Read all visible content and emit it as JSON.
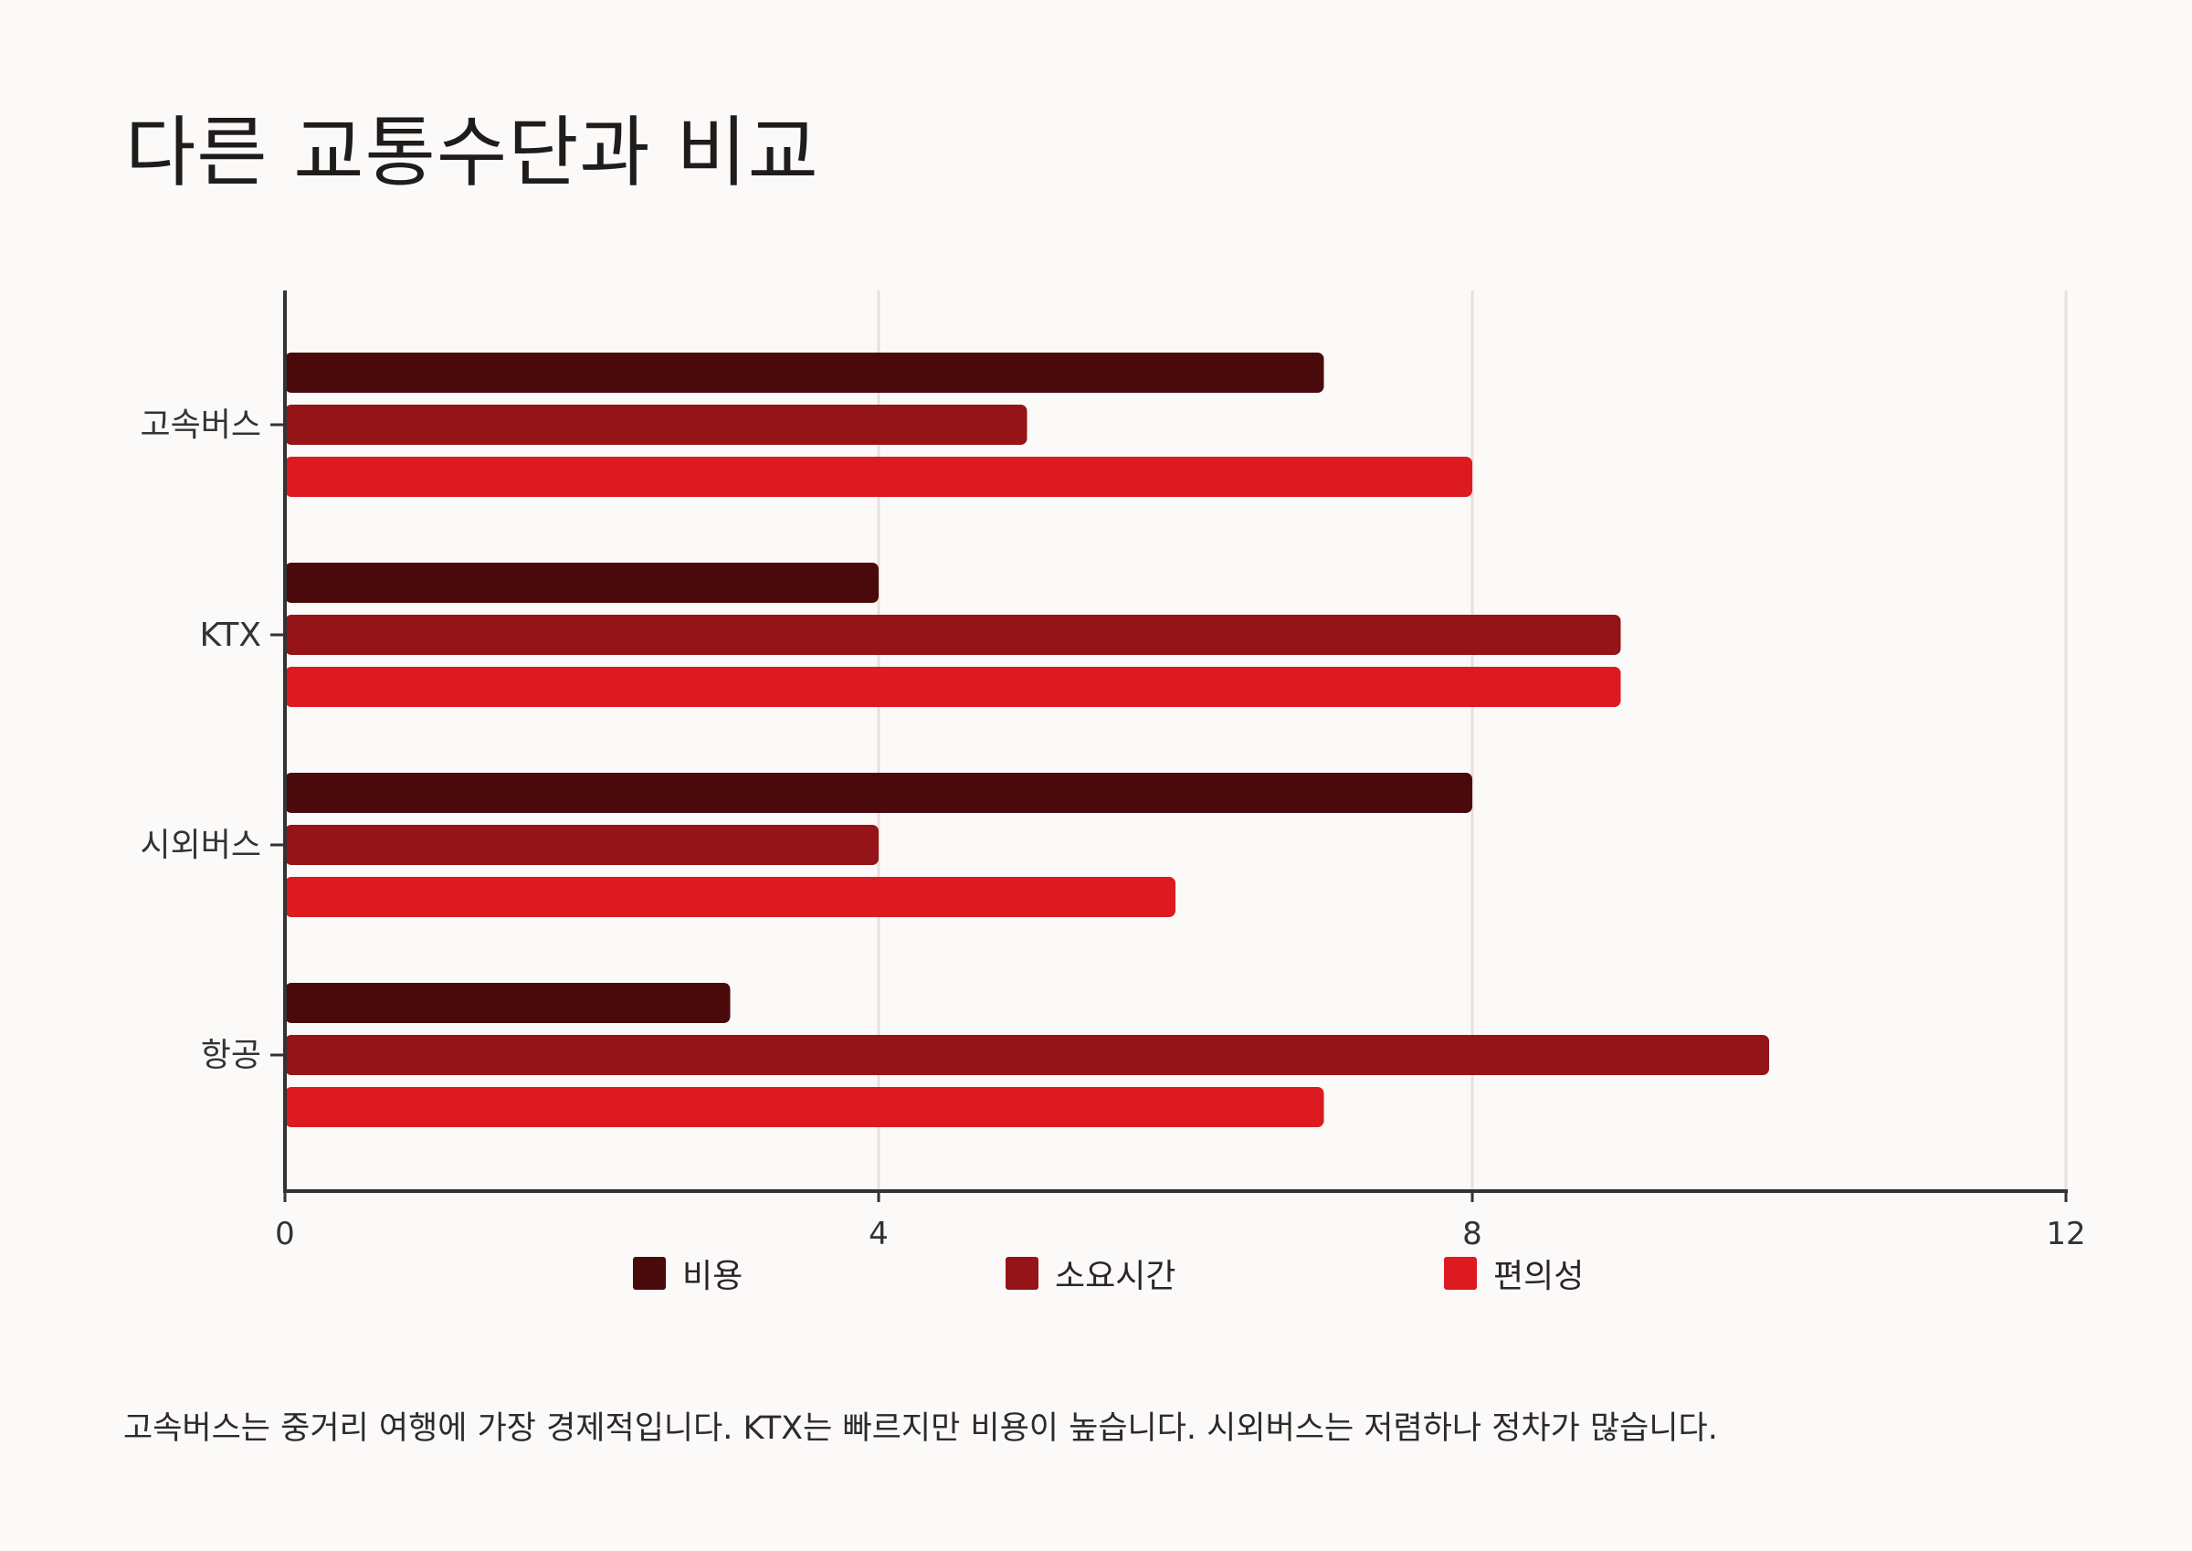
{
  "title": "다른 교통수단과 비교",
  "chart_data": {
    "type": "bar",
    "orientation": "horizontal",
    "categories": [
      "고속버스",
      "KTX",
      "시외버스",
      "항공"
    ],
    "series": [
      {
        "name": "비용",
        "color": "#4a0a0b",
        "values": [
          7,
          4,
          8,
          3
        ]
      },
      {
        "name": "소요시간",
        "color": "#951418",
        "values": [
          5,
          9,
          4,
          10
        ]
      },
      {
        "name": "편의성",
        "color": "#dd1a20",
        "values": [
          8,
          9,
          6,
          7
        ]
      }
    ],
    "xlim": [
      0,
      12
    ],
    "xticks": [
      "0",
      "4",
      "8",
      "12"
    ],
    "grid": true,
    "legend_position": "bottom"
  },
  "caption": "고속버스는 중거리 여행에 가장 경제적입니다. KTX는 빠르지만 비용이 높습니다. 시외버스는 저렴하나 정차가 많습니다."
}
